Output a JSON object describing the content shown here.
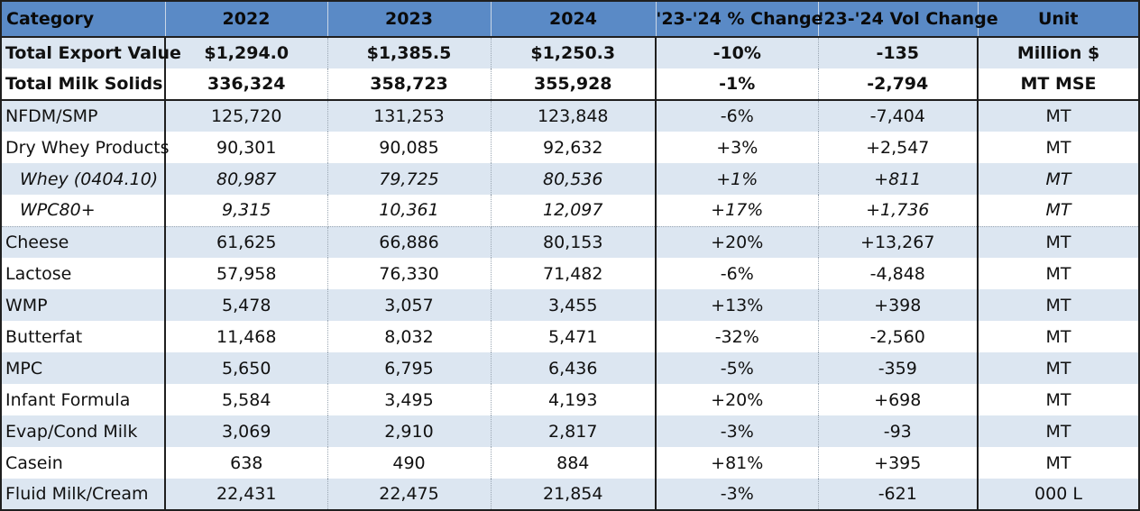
{
  "chart_data": {
    "type": "table",
    "columns": [
      "Category",
      "2022",
      "2023",
      "2024",
      "'23-'24 % Change",
      "'23-'24 Vol Change",
      "Unit"
    ],
    "rows": [
      {
        "category": "Total Export Value",
        "y2022": "$1,294.0",
        "y2023": "$1,385.5",
        "y2024": "$1,250.3",
        "pct": "-10%",
        "vol": "-135",
        "unit": "Million $",
        "style": "bold"
      },
      {
        "category": "Total Milk Solids",
        "y2022": "336,324",
        "y2023": "358,723",
        "y2024": "355,928",
        "pct": "-1%",
        "vol": "-2,794",
        "unit": "MT MSE",
        "style": "bold"
      },
      {
        "category": "NFDM/SMP",
        "y2022": "125,720",
        "y2023": "131,253",
        "y2024": "123,848",
        "pct": "-6%",
        "vol": "-7,404",
        "unit": "MT",
        "style": "normal"
      },
      {
        "category": "Dry Whey Products",
        "y2022": "90,301",
        "y2023": "90,085",
        "y2024": "92,632",
        "pct": "+3%",
        "vol": "+2,547",
        "unit": "MT",
        "style": "normal"
      },
      {
        "category": "Whey (0404.10)",
        "y2022": "80,987",
        "y2023": "79,725",
        "y2024": "80,536",
        "pct": "+1%",
        "vol": "+811",
        "unit": "MT",
        "style": "italic"
      },
      {
        "category": "WPC80+",
        "y2022": "9,315",
        "y2023": "10,361",
        "y2024": "12,097",
        "pct": "+17%",
        "vol": "+1,736",
        "unit": "MT",
        "style": "italic"
      },
      {
        "category": "Cheese",
        "y2022": "61,625",
        "y2023": "66,886",
        "y2024": "80,153",
        "pct": "+20%",
        "vol": "+13,267",
        "unit": "MT",
        "style": "normal"
      },
      {
        "category": "Lactose",
        "y2022": "57,958",
        "y2023": "76,330",
        "y2024": "71,482",
        "pct": "-6%",
        "vol": "-4,848",
        "unit": "MT",
        "style": "normal"
      },
      {
        "category": "WMP",
        "y2022": "5,478",
        "y2023": "3,057",
        "y2024": "3,455",
        "pct": "+13%",
        "vol": "+398",
        "unit": "MT",
        "style": "normal"
      },
      {
        "category": "Butterfat",
        "y2022": "11,468",
        "y2023": "8,032",
        "y2024": "5,471",
        "pct": "-32%",
        "vol": "-2,560",
        "unit": "MT",
        "style": "normal"
      },
      {
        "category": "MPC",
        "y2022": "5,650",
        "y2023": "6,795",
        "y2024": "6,436",
        "pct": "-5%",
        "vol": "-359",
        "unit": "MT",
        "style": "normal"
      },
      {
        "category": "Infant Formula",
        "y2022": "5,584",
        "y2023": "3,495",
        "y2024": "4,193",
        "pct": "+20%",
        "vol": "+698",
        "unit": "MT",
        "style": "normal"
      },
      {
        "category": "Evap/Cond Milk",
        "y2022": "3,069",
        "y2023": "2,910",
        "y2024": "2,817",
        "pct": "-3%",
        "vol": "-93",
        "unit": "MT",
        "style": "normal"
      },
      {
        "category": "Casein",
        "y2022": "638",
        "y2023": "490",
        "y2024": "884",
        "pct": "+81%",
        "vol": "+395",
        "unit": "MT",
        "style": "normal"
      },
      {
        "category": "Fluid Milk/Cream",
        "y2022": "22,431",
        "y2023": "22,475",
        "y2024": "21,854",
        "pct": "-3%",
        "vol": "-621",
        "unit": "000 L",
        "style": "normal"
      }
    ],
    "colors": {
      "header": "#5a8ac6",
      "band": "#dce6f1",
      "negative": "#b5204a",
      "positive": "#213f8c"
    }
  }
}
